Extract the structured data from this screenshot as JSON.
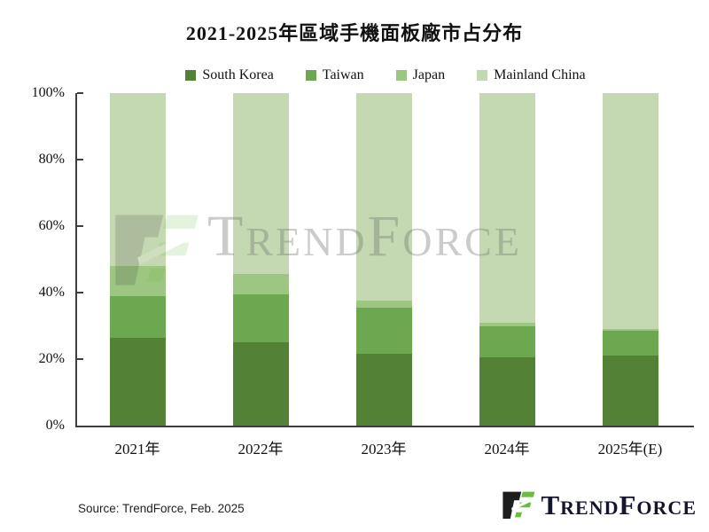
{
  "title": "2021-2025年區域手機面板廠市占分布",
  "chart_data": {
    "type": "bar",
    "stacked": true,
    "percent_stacked": true,
    "title": "2021-2025年區域手機面板廠市占分布",
    "categories": [
      "2021年",
      "2022年",
      "2023年",
      "2024年",
      "2025年(E)"
    ],
    "series": [
      {
        "name": "South Korea",
        "color": "#538135",
        "values": [
          26.5,
          25.0,
          21.5,
          20.5,
          21.0
        ]
      },
      {
        "name": "Taiwan",
        "color": "#6CA84F",
        "values": [
          12.5,
          14.5,
          14.0,
          9.5,
          7.5
        ]
      },
      {
        "name": "Japan",
        "color": "#9DC682",
        "values": [
          9.0,
          6.0,
          2.0,
          1.0,
          0.5
        ]
      },
      {
        "name": "Mainland China",
        "color": "#C4D8B1",
        "values": [
          52.0,
          54.5,
          62.5,
          69.0,
          71.0
        ]
      }
    ],
    "xlabel": "",
    "ylabel": "",
    "ylim": [
      0,
      100
    ],
    "yticks": [
      {
        "value": 0,
        "label": "0%"
      },
      {
        "value": 20,
        "label": "20%"
      },
      {
        "value": 40,
        "label": "40%"
      },
      {
        "value": 60,
        "label": "60%"
      },
      {
        "value": 80,
        "label": "80%"
      },
      {
        "value": 100,
        "label": "100%"
      }
    ],
    "legend_position": "top",
    "grid": false,
    "axis_color": "#3d3d3d"
  },
  "watermark": {
    "text": "TrendForce"
  },
  "footer": {
    "source": "Source: TrendForce, Feb. 2025",
    "logo_text": "TrendForce",
    "logo_green": "#67BE3E",
    "logo_black": "#1d1d1d"
  }
}
